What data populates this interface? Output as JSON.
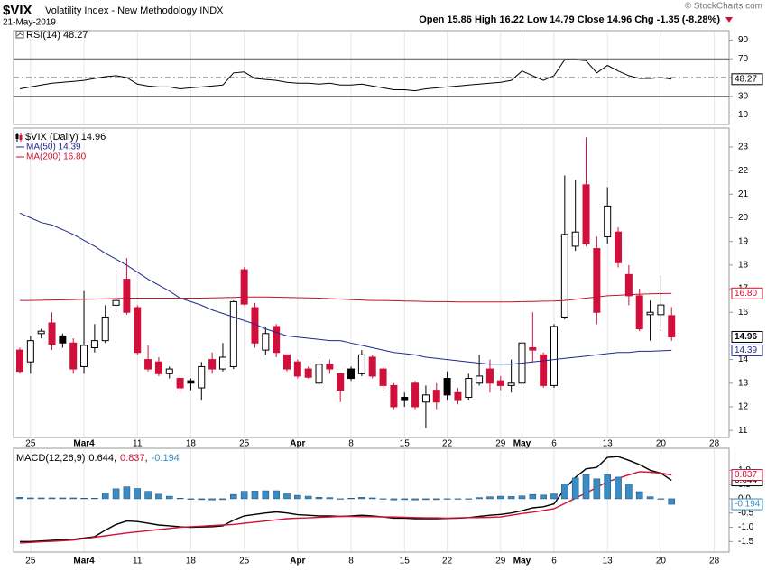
{
  "chart_data": [
    {
      "type": "line",
      "legend_icon": true,
      "ylim": [
        0,
        100
      ],
      "yticks": [
        90,
        70,
        50,
        30,
        10
      ],
      "levels": [
        {
          "value": 70,
          "style": "solid"
        },
        {
          "value": 50,
          "style": "dashed"
        },
        {
          "value": 30,
          "style": "solid"
        }
      ],
      "series": [
        {
          "name": "RSI(14) 48.27",
          "color": "#000000",
          "badge": "48.27",
          "values": [
            38,
            40,
            42,
            44,
            45,
            46,
            47,
            49,
            51,
            52,
            50,
            43,
            41,
            40,
            40,
            38,
            39,
            40,
            41,
            42,
            55,
            56,
            49,
            48,
            47,
            45,
            44,
            44,
            43,
            44,
            42,
            42,
            43,
            41,
            39,
            37,
            37,
            36,
            38,
            39,
            40,
            41,
            42,
            43,
            44,
            45,
            47,
            57,
            52,
            47,
            52,
            69,
            69,
            68,
            55,
            63,
            57,
            52,
            49,
            49,
            50,
            48.27,
            null,
            null,
            null,
            null
          ]
        }
      ]
    },
    {
      "type": "candlestick",
      "title": "$VIX",
      "subtitle": "Volatility Index - New Methodology INDX",
      "date": "21-May-2019",
      "quote": "Open 15.86 High 16.22 Low 14.79 Close 14.96 Chg -1.35 (-8.28%)",
      "credit": "© StockCharts.com",
      "legend": "$VIX (Daily) 14.96",
      "badge": "14.96",
      "up_color": "#000000",
      "down_color": "#d0103a",
      "xgrid": true,
      "categories": [
        null,
        "25",
        null,
        null,
        null,
        null,
        "Mar4",
        null,
        null,
        null,
        null,
        "11",
        null,
        null,
        null,
        null,
        "18",
        null,
        null,
        null,
        null,
        "25",
        null,
        null,
        null,
        null,
        "Apr",
        null,
        null,
        null,
        null,
        "8",
        null,
        null,
        null,
        null,
        "15",
        null,
        null,
        null,
        "22",
        null,
        null,
        null,
        null,
        "29",
        null,
        "May",
        null,
        null,
        "6",
        null,
        null,
        null,
        null,
        "13",
        null,
        null,
        null,
        null,
        "20",
        null,
        null,
        null,
        null,
        "28"
      ],
      "open": [
        14.4,
        13.9,
        15.1,
        15.55,
        15.0,
        14.7,
        13.7,
        14.5,
        14.8,
        16.3,
        17.4,
        16.2,
        14.0,
        13.9,
        13.4,
        13.2,
        13.1,
        12.8,
        14.0,
        13.6,
        13.7,
        17.8,
        16.2,
        14.4,
        15.4,
        14.2,
        13.9,
        13.6,
        13.0,
        13.8,
        13.4,
        13.6,
        13.4,
        14.1,
        13.6,
        12.9,
        12.4,
        13.0,
        12.2,
        12.7,
        13.2,
        12.6,
        12.4,
        13.0,
        13.6,
        13.1,
        12.9,
        13.0,
        14.5,
        14.2,
        12.9,
        15.8,
        18.8,
        21.4,
        18.7,
        19.2,
        19.4,
        17.6,
        16.7,
        15.9,
        15.9,
        15.86,
        null,
        null,
        null,
        null
      ],
      "high": [
        14.5,
        15.0,
        15.3,
        16.0,
        15.1,
        14.9,
        16.9,
        15.5,
        16.3,
        17.8,
        18.3,
        16.3,
        14.6,
        14.1,
        13.7,
        13.2,
        13.2,
        13.9,
        14.3,
        14.7,
        16.5,
        17.9,
        16.4,
        15.4,
        15.5,
        14.2,
        14.0,
        13.7,
        14.0,
        14.0,
        13.4,
        13.7,
        14.4,
        14.2,
        13.7,
        13.0,
        12.6,
        13.1,
        12.9,
        13.0,
        13.5,
        12.8,
        13.4,
        14.2,
        14.0,
        13.3,
        14.0,
        14.8,
        16.0,
        14.3,
        15.5,
        21.8,
        21.6,
        23.4,
        19.2,
        21.3,
        19.6,
        18.0,
        17.0,
        16.5,
        17.6,
        16.22,
        null,
        null,
        null,
        null
      ],
      "low": [
        13.4,
        13.4,
        14.9,
        14.4,
        14.5,
        13.4,
        13.4,
        14.3,
        14.7,
        16.0,
        15.9,
        14.2,
        13.5,
        13.3,
        13.2,
        12.6,
        12.7,
        12.3,
        13.4,
        13.5,
        13.6,
        16.3,
        14.5,
        14.2,
        14.1,
        13.5,
        13.2,
        13.2,
        12.8,
        13.4,
        12.2,
        13.1,
        13.3,
        13.2,
        12.7,
        11.9,
        12.0,
        11.9,
        11.1,
        11.9,
        12.3,
        12.1,
        12.3,
        12.9,
        12.6,
        12.7,
        12.6,
        12.8,
        13.9,
        12.8,
        12.8,
        15.7,
        18.6,
        18.8,
        15.5,
        18.9,
        17.9,
        16.3,
        15.2,
        14.8,
        15.2,
        14.79,
        null,
        null,
        null,
        null
      ],
      "close": [
        13.5,
        14.8,
        15.2,
        14.65,
        14.7,
        13.6,
        14.6,
        14.8,
        15.8,
        16.5,
        16.0,
        14.3,
        13.6,
        13.4,
        13.6,
        12.8,
        13.0,
        13.7,
        13.6,
        14.1,
        16.45,
        16.35,
        14.7,
        15.1,
        14.3,
        13.6,
        13.3,
        13.25,
        13.8,
        13.6,
        12.7,
        13.2,
        14.2,
        13.3,
        12.9,
        12.0,
        12.3,
        12.0,
        12.5,
        12.2,
        12.5,
        12.3,
        13.2,
        13.3,
        13.0,
        12.9,
        13.0,
        14.7,
        14.4,
        12.9,
        15.4,
        19.3,
        19.4,
        18.9,
        16.0,
        20.5,
        18.1,
        16.7,
        15.3,
        16.0,
        16.31,
        14.96,
        null,
        null,
        null,
        null
      ],
      "series": [
        {
          "name": "MA(50) 14.39",
          "color": "#1f2a8c",
          "badge": "14.39",
          "values": [
            20.2,
            20.0,
            19.8,
            19.7,
            19.5,
            19.3,
            19.05,
            18.8,
            18.5,
            18.25,
            18.0,
            17.7,
            17.4,
            17.15,
            16.9,
            16.6,
            16.45,
            16.3,
            16.1,
            15.95,
            15.8,
            15.65,
            15.5,
            15.3,
            15.15,
            15.0,
            14.95,
            14.9,
            14.85,
            14.8,
            14.8,
            14.7,
            14.6,
            14.5,
            14.4,
            14.3,
            14.25,
            14.2,
            14.1,
            14.05,
            14.0,
            13.95,
            13.9,
            13.85,
            13.8,
            13.8,
            13.8,
            13.85,
            13.9,
            13.95,
            14.0,
            14.05,
            14.1,
            14.15,
            14.2,
            14.25,
            14.3,
            14.3,
            14.35,
            14.35,
            14.37,
            14.39,
            null,
            null,
            null,
            null
          ]
        },
        {
          "name": "MA(200) 16.80",
          "color": "#c8102e",
          "badge": "16.80",
          "values": [
            16.5,
            16.5,
            16.51,
            16.52,
            16.53,
            16.54,
            16.55,
            16.56,
            16.57,
            16.58,
            16.6,
            16.6,
            16.6,
            16.6,
            16.6,
            16.6,
            16.6,
            16.6,
            16.61,
            16.62,
            16.63,
            16.65,
            16.65,
            16.65,
            16.64,
            16.63,
            16.62,
            16.61,
            16.6,
            16.58,
            16.56,
            16.54,
            16.52,
            16.5,
            16.5,
            16.49,
            16.48,
            16.47,
            16.46,
            16.45,
            16.45,
            16.44,
            16.44,
            16.44,
            16.44,
            16.44,
            16.44,
            16.45,
            16.46,
            16.47,
            16.48,
            16.5,
            16.55,
            16.6,
            16.65,
            16.7,
            16.72,
            16.75,
            16.77,
            16.78,
            16.79,
            16.8,
            null,
            null,
            null,
            null
          ]
        }
      ],
      "ylim": [
        10.7,
        23.8
      ],
      "yticks": [
        11,
        12,
        13,
        14,
        15,
        16,
        17,
        18,
        19,
        20,
        21,
        22,
        23
      ]
    },
    {
      "type": "line",
      "legend": "MACD(12,26,9)",
      "separator": ",",
      "xgrid": true,
      "categories": [
        null,
        "25",
        null,
        null,
        null,
        null,
        "Mar4",
        null,
        null,
        null,
        null,
        "11",
        null,
        null,
        null,
        null,
        "18",
        null,
        null,
        null,
        null,
        "25",
        null,
        null,
        null,
        null,
        "Apr",
        null,
        null,
        null,
        null,
        "8",
        null,
        null,
        null,
        null,
        "15",
        null,
        null,
        null,
        "22",
        null,
        null,
        null,
        null,
        "29",
        null,
        "May",
        null,
        null,
        "6",
        null,
        null,
        null,
        null,
        "13",
        null,
        null,
        null,
        null,
        "20",
        null,
        null,
        null,
        null,
        "28"
      ],
      "ylim": [
        -1.87,
        1.77
      ],
      "yticks": [
        {
          "value": 1,
          "label": "1.0"
        },
        0.5,
        {
          "value": 0,
          "label": "0.0"
        },
        -0.5,
        {
          "value": -1,
          "label": "-1.0"
        },
        -1.5
      ],
      "series": [
        {
          "name": "0.644",
          "color": "#000000",
          "style": "line",
          "values": [
            -1.5,
            -1.5,
            -1.48,
            -1.46,
            -1.44,
            -1.42,
            -1.38,
            -1.33,
            -1.1,
            -0.9,
            -0.78,
            -0.8,
            -0.86,
            -0.92,
            -0.95,
            -0.98,
            -1.0,
            -0.99,
            -0.98,
            -0.95,
            -0.75,
            -0.6,
            -0.55,
            -0.5,
            -0.46,
            -0.5,
            -0.56,
            -0.58,
            -0.6,
            -0.6,
            -0.62,
            -0.6,
            -0.58,
            -0.6,
            -0.64,
            -0.68,
            -0.68,
            -0.7,
            -0.7,
            -0.7,
            -0.69,
            -0.68,
            -0.66,
            -0.62,
            -0.58,
            -0.55,
            -0.5,
            -0.42,
            -0.32,
            -0.28,
            -0.18,
            0.35,
            0.75,
            1.05,
            1.1,
            1.45,
            1.48,
            1.35,
            1.2,
            1.0,
            0.9,
            0.644,
            null,
            null,
            null,
            null
          ]
        },
        {
          "name": "0.837",
          "color": "#d0103a",
          "style": "line",
          "values": [
            -1.55,
            -1.53,
            -1.51,
            -1.49,
            -1.47,
            -1.45,
            -1.4,
            -1.35,
            -1.3,
            -1.25,
            -1.2,
            -1.16,
            -1.12,
            -1.08,
            -1.04,
            -1.0,
            -0.98,
            -0.96,
            -0.94,
            -0.92,
            -0.9,
            -0.86,
            -0.82,
            -0.78,
            -0.74,
            -0.7,
            -0.68,
            -0.67,
            -0.65,
            -0.64,
            -0.62,
            -0.62,
            -0.63,
            -0.63,
            -0.64,
            -0.64,
            -0.65,
            -0.66,
            -0.67,
            -0.67,
            -0.68,
            -0.67,
            -0.66,
            -0.66,
            -0.65,
            -0.64,
            -0.58,
            -0.52,
            -0.47,
            -0.41,
            -0.35,
            -0.17,
            0.02,
            0.2,
            0.4,
            0.6,
            0.72,
            0.84,
            0.95,
            0.93,
            0.9,
            0.837,
            null,
            null,
            null,
            null
          ]
        },
        {
          "name": "-0.194",
          "color": "#3b8cc4",
          "style": "bar",
          "values": [
            0.05,
            0.03,
            0.03,
            0.03,
            0.03,
            0.03,
            0.02,
            0.02,
            0.2,
            0.35,
            0.42,
            0.36,
            0.26,
            0.16,
            0.09,
            0.02,
            -0.02,
            -0.03,
            -0.04,
            -0.03,
            0.15,
            0.26,
            0.27,
            0.28,
            0.28,
            0.2,
            0.12,
            0.09,
            0.05,
            0.04,
            0.0,
            0.02,
            0.05,
            0.03,
            0.0,
            -0.04,
            -0.03,
            -0.04,
            -0.03,
            -0.03,
            -0.01,
            -0.01,
            0.0,
            0.04,
            0.07,
            0.09,
            0.08,
            0.1,
            0.15,
            0.13,
            0.17,
            0.52,
            0.73,
            0.85,
            0.7,
            0.85,
            0.76,
            0.51,
            0.25,
            0.07,
            0.0,
            -0.194,
            null,
            null,
            null,
            null
          ]
        }
      ]
    }
  ]
}
